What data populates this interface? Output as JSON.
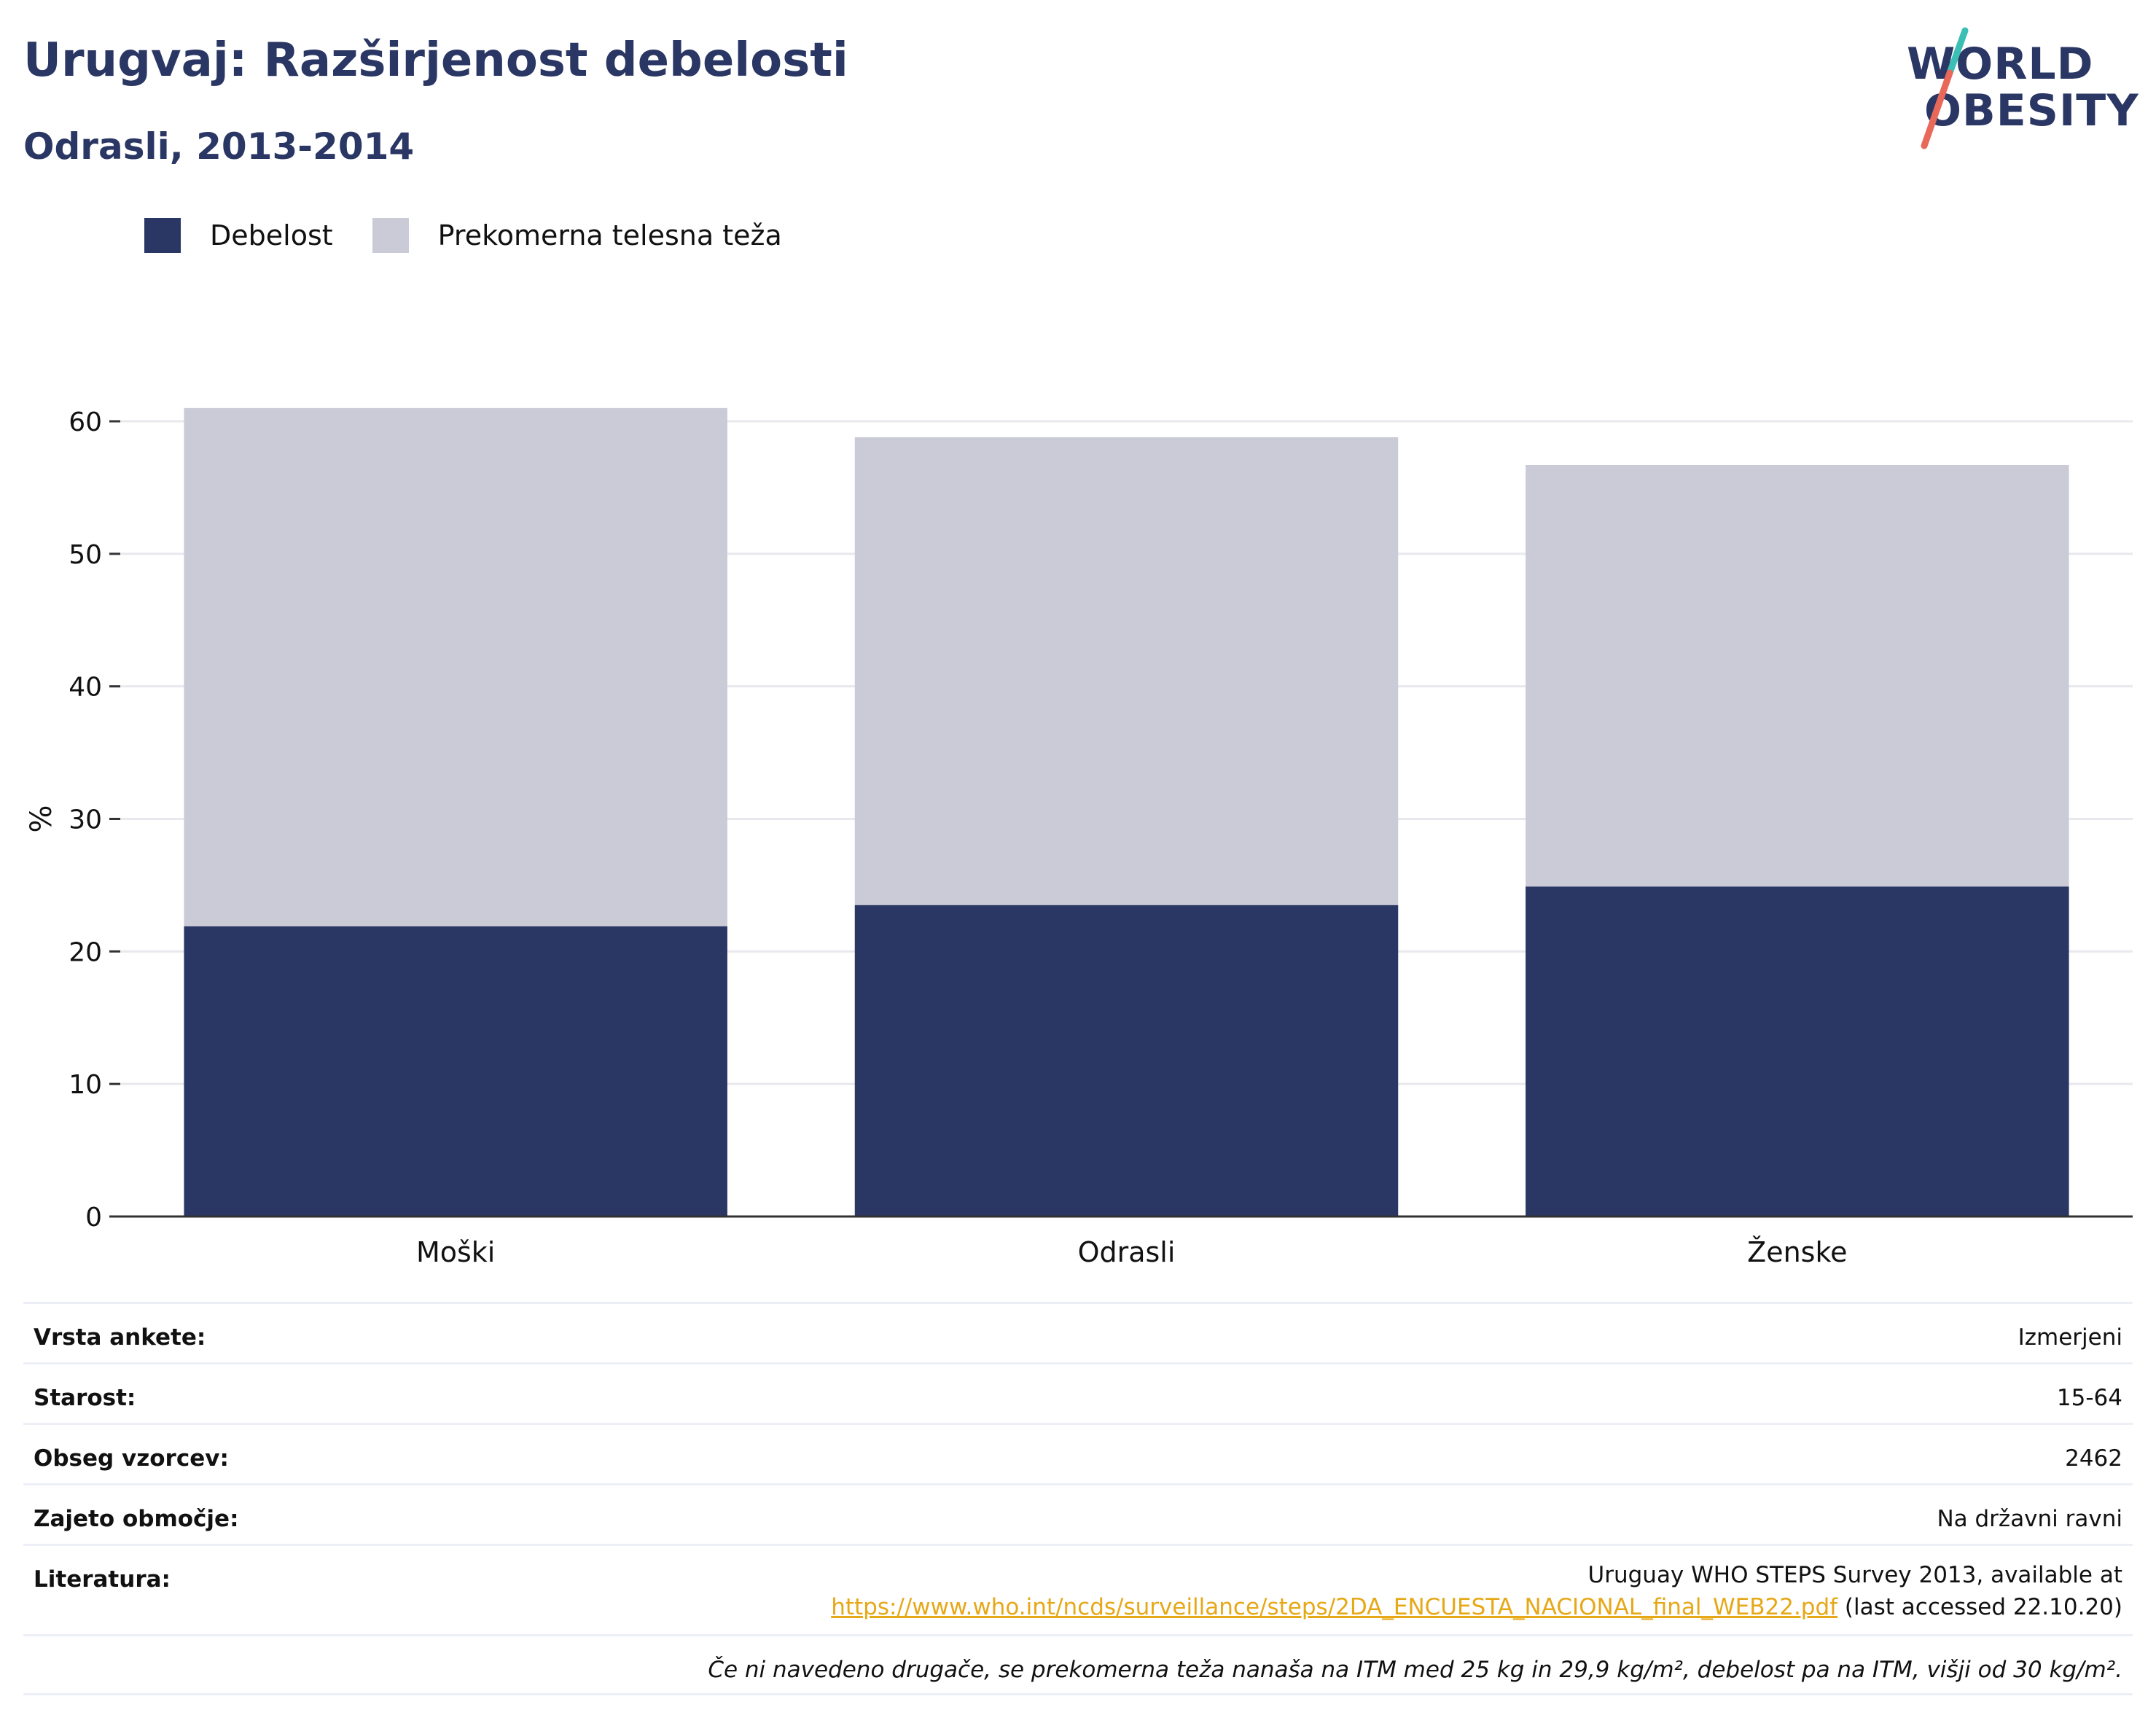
{
  "header": {
    "title": "Urugvaj: Razširjenost debelosti",
    "subtitle": "Odrasli, 2013-2014"
  },
  "logo": {
    "line1": "WORLD",
    "line2": "OBESITY",
    "slash_colors": [
      "#3bbfb5",
      "#e8685a"
    ]
  },
  "legend": [
    {
      "label": "Debelost",
      "color": "#2a3663"
    },
    {
      "label": "Prekomerna telesna teža",
      "color": "#cacbd7"
    }
  ],
  "chart_data": {
    "type": "bar",
    "stacked": true,
    "categories": [
      "Moški",
      "Odrasli",
      "Ženske"
    ],
    "series": [
      {
        "name": "Debelost",
        "color": "#2a3663",
        "values": [
          21.9,
          23.5,
          24.9
        ]
      },
      {
        "name": "Prekomerna telesna teža",
        "color": "#cacbd7",
        "values": [
          39.1,
          35.3,
          31.8
        ]
      }
    ],
    "ylabel": "%",
    "ylim": [
      0,
      60
    ],
    "yticks": [
      0,
      10,
      20,
      30,
      40,
      50,
      60
    ],
    "grid": true,
    "legend_position": "top-left"
  },
  "info": {
    "rows": [
      {
        "key": "Vrsta ankete:",
        "value": "Izmerjeni"
      },
      {
        "key": "Starost:",
        "value": "15-64"
      },
      {
        "key": "Obseg vzorcev:",
        "value": "2462"
      },
      {
        "key": "Zajeto območje:",
        "value": "Na državni ravni"
      }
    ],
    "literature": {
      "key": "Literatura:",
      "line1": "Uruguay WHO STEPS Survey 2013, available at",
      "link": "https://www.who.int/ncds/surveillance/steps/2DA_ENCUESTA_NACIONAL_final_WEB22.pdf",
      "suffix": " (last accessed 22.10.20)"
    },
    "note": "Če ni navedeno drugače, se prekomerna teža nanaša na ITM med 25 kg in 29,9 kg/m², debelost pa na ITM, višji od 30 kg/m²."
  }
}
